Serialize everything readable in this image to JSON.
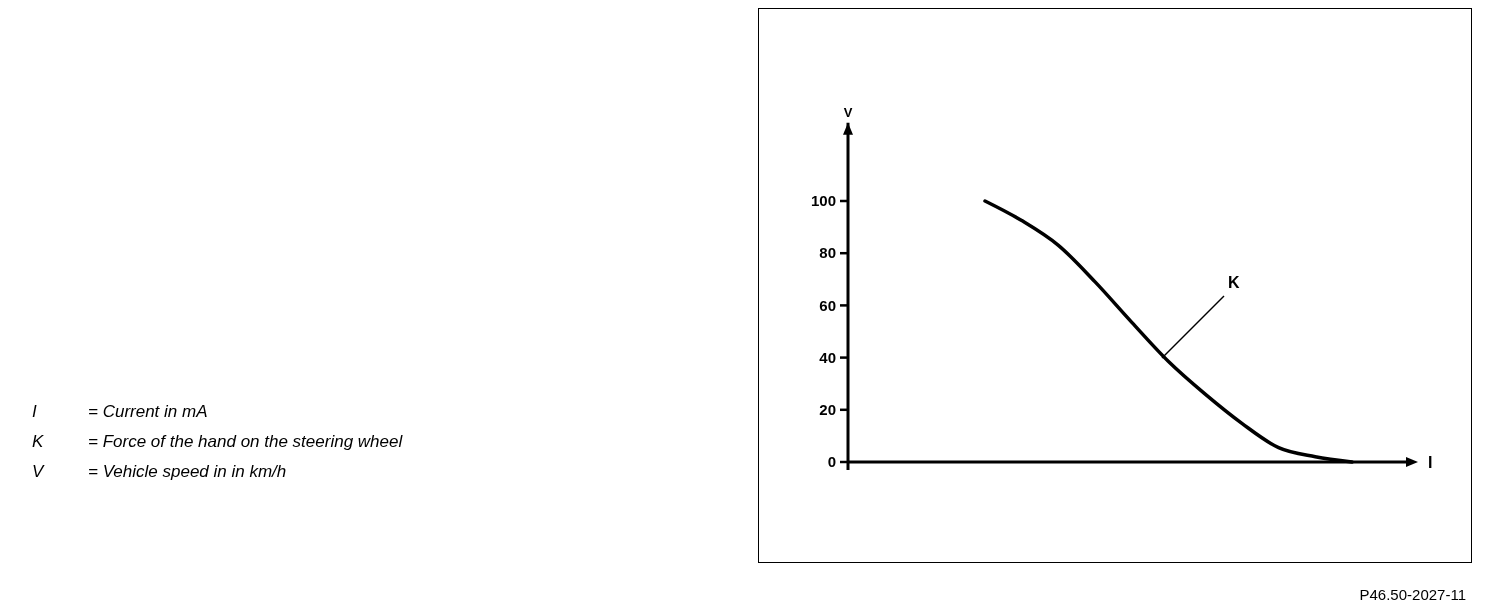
{
  "chart_data": {
    "type": "line",
    "xlabel": "I",
    "ylabel": "V",
    "categories": [
      null,
      null,
      null,
      null,
      null,
      null,
      null,
      null,
      null,
      null,
      null
    ],
    "series": [
      {
        "color": "#000000",
        "values": [
          100,
          92.5,
          83,
          69,
          53.5,
          38.5,
          26,
          14.8,
          5.5,
          2,
          0
        ]
      }
    ],
    "ylim": [
      0,
      130
    ],
    "yticks": [
      0,
      20,
      40,
      60,
      80,
      100
    ],
    "marker": "none",
    "line_style": "solid",
    "annotations": [
      "K",
      "I = Current in mA",
      "K = Force of the hand on the steering wheel",
      "V = Vehicle speed in in km/h",
      "P46.50-2027-11"
    ]
  }
}
